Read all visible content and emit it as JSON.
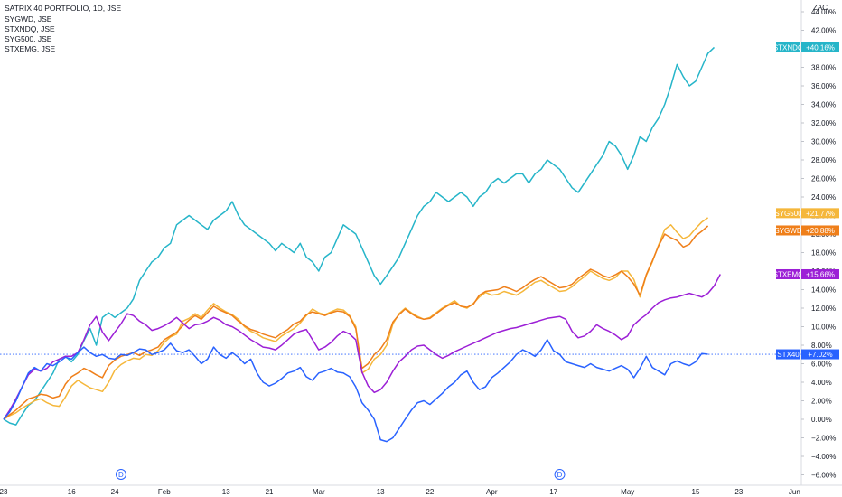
{
  "legend": {
    "main": "SATRIX 40 PORTFOLIO, 1D, JSE",
    "items": [
      "SYGWD, JSE",
      "STXNDQ, JSE",
      "SYG500, JSE",
      "STXEMG, JSE"
    ]
  },
  "currency": "ZAC",
  "colors": {
    "STX40": "#2962ff",
    "STXNDQ": "#26b5c9",
    "SYG500": "#f5b73b",
    "SYGWD": "#ef7f1a",
    "STXEMG": "#9c1fd6",
    "baseline": "#2962ff",
    "axis": "#131722"
  },
  "event_markers": [
    {
      "label": "D",
      "x": 19
    },
    {
      "label": "D",
      "x": 90
    }
  ],
  "chart_data": {
    "type": "line",
    "title": "SATRIX 40 PORTFOLIO, 1D, JSE",
    "xlabel": "",
    "ylabel": "ZAC",
    "xlim": [
      0,
      124
    ],
    "ylim": [
      -7,
      45
    ],
    "x_ticks": [
      {
        "x": 0,
        "label": "23"
      },
      {
        "x": 11,
        "label": "16"
      },
      {
        "x": 18,
        "label": "24"
      },
      {
        "x": 26,
        "label": "Feb"
      },
      {
        "x": 36,
        "label": "13"
      },
      {
        "x": 43,
        "label": "21"
      },
      {
        "x": 51,
        "label": "Mar"
      },
      {
        "x": 61,
        "label": "13"
      },
      {
        "x": 69,
        "label": "22"
      },
      {
        "x": 79,
        "label": "Apr"
      },
      {
        "x": 89,
        "label": "17"
      },
      {
        "x": 101,
        "label": "May"
      },
      {
        "x": 112,
        "label": "15"
      },
      {
        "x": 119,
        "label": "23"
      },
      {
        "x": 128,
        "label": "Jun"
      }
    ],
    "y_ticks": [
      -6,
      -4,
      -2,
      0,
      2,
      4,
      6,
      8,
      10,
      12,
      14,
      16,
      18,
      20,
      22,
      24,
      26,
      28,
      30,
      32,
      34,
      36,
      38,
      40,
      42,
      44
    ],
    "y_tick_labels": [
      "−6.00%",
      "−4.00%",
      "−2.00%",
      "0.00%",
      "2.00%",
      "4.00%",
      "6.00%",
      "8.00%",
      "10.00%",
      "12.00%",
      "14.00%",
      "16.00%",
      "18.00%",
      "20.00%",
      "22.00%",
      "24.00%",
      "26.00%",
      "28.00%",
      "30.00%",
      "32.00%",
      "34.00%",
      "36.00%",
      "38.00%",
      "40.00%",
      "42.00%",
      "44.00%"
    ],
    "series": [
      {
        "name": "STXNDQ",
        "last_label": "+40.16%",
        "last_value": 40.16,
        "values": [
          0,
          -0.4,
          -0.6,
          0.5,
          1.5,
          2,
          3,
          4,
          5,
          6.5,
          6.8,
          6.2,
          7,
          8.5,
          9.8,
          8,
          11,
          11.5,
          11,
          11.5,
          12,
          13,
          15,
          16,
          17,
          17.5,
          18.5,
          19,
          21,
          21.5,
          22,
          21.5,
          21,
          20.5,
          21.5,
          22,
          22.5,
          23.5,
          22,
          21,
          20.5,
          20,
          19.5,
          19,
          18.2,
          19,
          18.5,
          18,
          19,
          17.5,
          17,
          16,
          17.5,
          18,
          19.5,
          21,
          20.5,
          20,
          18.5,
          17,
          15.5,
          14.6,
          15.5,
          16.5,
          17.5,
          19,
          20.5,
          22,
          23,
          23.5,
          24.5,
          24,
          23.5,
          24,
          24.5,
          24,
          23,
          24,
          24.5,
          25.5,
          26,
          25.5,
          26,
          26.5,
          26.5,
          25.5,
          26.5,
          27,
          28,
          27.5,
          27,
          26,
          25,
          24.5,
          25.5,
          26.5,
          27.5,
          28.5,
          30,
          29.5,
          28.5,
          27,
          28.5,
          30.5,
          30,
          31.5,
          32.5,
          34,
          36,
          38.3,
          37,
          36,
          36.5,
          38,
          39.5,
          40.16
        ]
      },
      {
        "name": "STX40",
        "last_label": "+7.02%",
        "last_value": 7.02,
        "values": [
          0,
          0.8,
          2,
          3.5,
          5,
          5.6,
          5.2,
          6,
          5.8,
          6.2,
          6.7,
          6.5,
          7.2,
          7.8,
          7.2,
          6.8,
          7,
          6.6,
          6.5,
          7,
          6.9,
          7.2,
          7.6,
          7.5,
          7,
          7.2,
          7.5,
          8.2,
          7.4,
          7.2,
          7.5,
          6.8,
          6,
          6.5,
          7.8,
          7,
          6.6,
          7.2,
          6.7,
          6,
          6.5,
          5,
          4,
          3.6,
          3.9,
          4.4,
          5,
          5.2,
          5.6,
          4.6,
          4.2,
          5,
          5.2,
          5.5,
          5.1,
          5,
          4.6,
          3.5,
          1.8,
          1,
          0,
          -2.2,
          -2.4,
          -2,
          -1,
          0,
          1,
          1.8,
          2,
          1.6,
          2.2,
          2.8,
          3.5,
          4,
          4.8,
          5.2,
          4,
          3.2,
          3.5,
          4.5,
          5,
          5.6,
          6.2,
          7,
          7.5,
          7.2,
          6.8,
          7.5,
          8.6,
          7.4,
          7,
          6.2,
          6,
          5.8,
          5.6,
          6,
          5.6,
          5.4,
          5.2,
          5.5,
          5.8,
          5.4,
          4.5,
          5.5,
          6.8,
          5.6,
          5.2,
          4.8,
          6,
          6.3,
          6,
          5.8,
          6.2,
          7.1,
          7.02
        ]
      },
      {
        "name": "SYG500",
        "last_label": "+21.77%",
        "last_value": 21.77,
        "values": [
          0,
          0.4,
          0.7,
          1.2,
          1.6,
          2,
          2.2,
          1.8,
          1.5,
          1.4,
          2.4,
          3.6,
          4.2,
          3.8,
          3.4,
          3.2,
          3,
          4,
          5.3,
          5.9,
          6.3,
          6.6,
          6.5,
          7,
          6.9,
          7.4,
          8.3,
          8.9,
          9.2,
          10.6,
          10.9,
          11.4,
          11,
          11.8,
          12.5,
          12,
          11.6,
          11.3,
          10.8,
          10,
          9.5,
          9.2,
          8.8,
          8.6,
          8.4,
          9,
          9.4,
          9.8,
          10.4,
          11.2,
          11.9,
          11.5,
          11.3,
          11.6,
          11.9,
          11.8,
          11.2,
          10,
          5,
          5.4,
          6.5,
          7,
          8,
          10.3,
          11.4,
          12,
          11.5,
          11.1,
          10.8,
          11,
          11.5,
          12,
          12.4,
          12.8,
          12.2,
          12,
          12.5,
          13.2,
          13.7,
          13.4,
          13.5,
          13.8,
          13.6,
          13.4,
          13.8,
          14.3,
          14.8,
          15,
          14.6,
          14.2,
          13.8,
          13.9,
          14.3,
          14.9,
          15.4,
          16,
          15.6,
          15.2,
          15,
          15.3,
          16,
          16,
          15.1,
          13.2,
          15.5,
          17,
          18.8,
          20.5,
          21,
          20.2,
          19.5,
          19.8,
          20.6,
          21.3,
          21.77
        ]
      },
      {
        "name": "SYGWD",
        "last_label": "+20.88%",
        "last_value": 20.88,
        "values": [
          0,
          0.5,
          1,
          1.6,
          2.2,
          2.4,
          2.7,
          2.6,
          2.3,
          2.5,
          3.8,
          4.6,
          5,
          5.5,
          5.2,
          4.8,
          4.5,
          5.8,
          6.4,
          6.8,
          7,
          7.2,
          6.9,
          7.3,
          7.5,
          7.8,
          8.6,
          9,
          9.4,
          10.1,
          10.7,
          11.2,
          10.8,
          11.5,
          12.2,
          11.8,
          11.5,
          11.2,
          10.6,
          10.1,
          9.7,
          9.5,
          9.2,
          9,
          8.8,
          9.3,
          9.7,
          10.3,
          10.6,
          11.3,
          11.6,
          11.4,
          11.2,
          11.5,
          11.7,
          11.6,
          11.1,
          9.8,
          5.5,
          6,
          7,
          7.6,
          8.6,
          10.5,
          11.3,
          11.9,
          11.4,
          11,
          10.8,
          10.9,
          11.4,
          11.9,
          12.3,
          12.6,
          12.2,
          12.1,
          12.4,
          13.4,
          13.8,
          13.9,
          14,
          14.3,
          14.1,
          13.8,
          14.2,
          14.7,
          15.1,
          15.4,
          15,
          14.6,
          14.2,
          14.3,
          14.6,
          15.2,
          15.7,
          16.2,
          15.9,
          15.5,
          15.3,
          15.6,
          16,
          15.4,
          14.6,
          13.4,
          15.6,
          17.1,
          18.7,
          20,
          19.6,
          19.3,
          18.6,
          18.9,
          19.8,
          20.3,
          20.88
        ]
      },
      {
        "name": "STXEMG",
        "last_label": "+15.66%",
        "last_value": 15.66,
        "values": [
          0,
          1,
          2.2,
          3.5,
          4.8,
          5.4,
          5.2,
          5.5,
          6.2,
          6.5,
          6.8,
          6.8,
          7.2,
          8.6,
          10.2,
          11.1,
          9.4,
          8.5,
          9.4,
          10.3,
          11.4,
          11.2,
          10.6,
          10.2,
          9.6,
          9.8,
          10.1,
          10.5,
          11,
          10.4,
          9.8,
          10.2,
          10.3,
          10.6,
          11,
          10.7,
          10.2,
          10,
          9.6,
          9.1,
          8.6,
          8.2,
          7.8,
          7.7,
          7.5,
          8,
          8.6,
          9.2,
          9.5,
          9.7,
          8.6,
          7.5,
          7.8,
          8.3,
          9,
          9.5,
          9.2,
          8.6,
          5.1,
          3.6,
          2.9,
          3.2,
          4,
          5.2,
          6.2,
          6.8,
          7.5,
          7.9,
          8,
          7.5,
          7,
          6.6,
          6.9,
          7.3,
          7.6,
          7.9,
          8.2,
          8.5,
          8.8,
          9.1,
          9.4,
          9.6,
          9.8,
          9.9,
          10.1,
          10.3,
          10.5,
          10.7,
          10.9,
          11,
          11.1,
          10.8,
          9.5,
          8.8,
          9,
          9.5,
          10.2,
          9.8,
          9.5,
          9.1,
          8.6,
          9,
          10.2,
          10.8,
          11.3,
          12,
          12.6,
          12.9,
          13.1,
          13.2,
          13.4,
          13.6,
          13.4,
          13.2,
          13.6,
          14.4,
          15.66
        ]
      }
    ]
  }
}
